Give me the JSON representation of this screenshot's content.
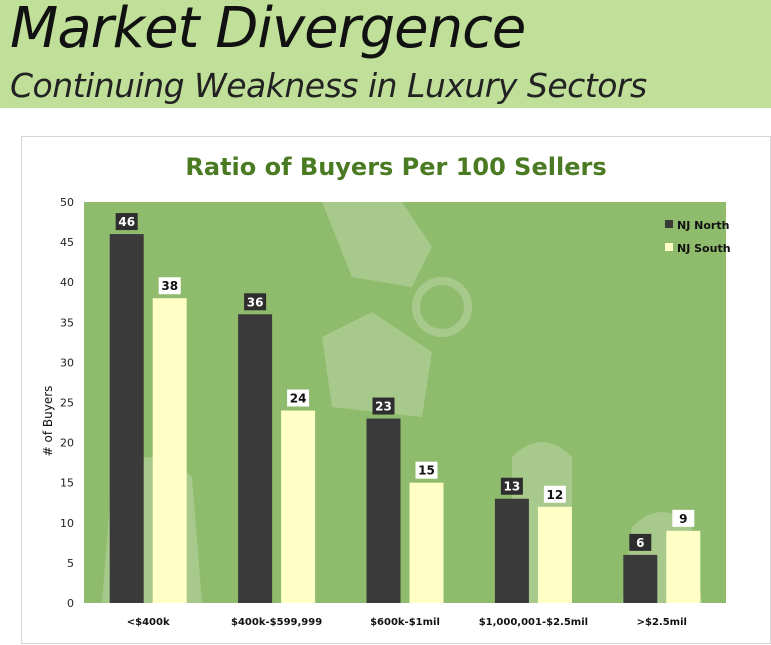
{
  "slide": {
    "title": "Market Divergence",
    "subtitle": "Continuing Weakness in Luxury Sectors"
  },
  "colors": {
    "banner": "#c0e09a",
    "plot_bg": "#8fbb6c",
    "series_north": "#3a3a3a",
    "series_south": "#ffffc6",
    "title": "#4a7a22"
  },
  "chart_data": {
    "type": "bar",
    "title": "Ratio of Buyers Per 100 Sellers",
    "ylabel": "# of Buyers",
    "xlabel": "",
    "ylim": [
      0,
      50
    ],
    "yticks": [
      0,
      5,
      10,
      15,
      20,
      25,
      30,
      35,
      40,
      45,
      50
    ],
    "categories": [
      "<$400k",
      "$400k-$599,999",
      "$600k-$1mil",
      "$1,000,001-$2.5mil",
      ">$2.5mil"
    ],
    "series": [
      {
        "name": "NJ North",
        "values": [
          46,
          36,
          23,
          13,
          6
        ]
      },
      {
        "name": "NJ South",
        "values": [
          38,
          24,
          15,
          12,
          9
        ]
      }
    ],
    "legend": "top-right",
    "grid": false,
    "data_labels": true
  }
}
